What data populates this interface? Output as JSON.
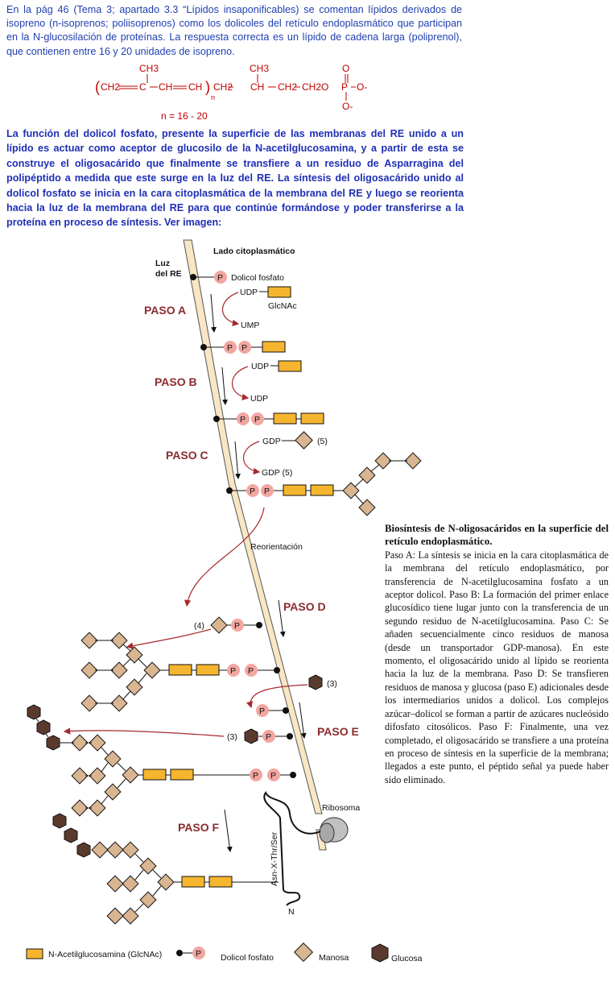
{
  "intro_text": "En la pág 46 (Tema 3; apartado 3.3 “Lípidos insaponificables) se comentan lípidos derivados de isopreno (n-isoprenos; poliisoprenos) como los dolicoles del retículo endoplasmático que participan en la N-glucosilación de proteínas. La respuesta correcta es un lípido de cadena larga (poliprenol), que contienen entre 16 y 20 unidades de isopreno.",
  "formula": {
    "ch3_a": "CH3",
    "ch3_b": "CH3",
    "o_top": "O",
    "paren_left": "(",
    "ch2_a": "CH2",
    "c": "C",
    "ch_a": "CH",
    "ch_b": "CH",
    "paren_right": ")",
    "n": "n",
    "ch2_b": "CH2",
    "ch_c": "CH",
    "ch2_c": "CH2",
    "ch2o": "CH2O",
    "p": "P",
    "o_minus_right": "O-",
    "o_minus_bottom": "O-",
    "n_range": "n = 16 - 20",
    "color": "#c00000"
  },
  "function_text": "La función del dolicol fosfato, presente la superficie de las membranas del RE unido a   un lípido es actuar como aceptor de glucosilo de la N-acetilglucosamina, y a partir de esta se construye el oligosacárido que finalmente se transfiere a un residuo de Asparragina del polipéptido a medida que este surge en la luz del RE. La síntesis del oligosacárido unido al dolicol fosfato se inicia en la cara citoplasmática de la membrana del RE y luego se reorienta hacia la luz de la membrana del RE para que continúe formándose y poder transferirse a la proteína en proceso de síntesis. Ver imagen:",
  "diagram": {
    "lado_citoplasmatico": "Lado citoplasmático",
    "luz_line1": "Luz",
    "luz_line2": "del RE",
    "dolicol_fosfato": "Dolicol fosfato",
    "p_symbol": "P",
    "udp": "UDP",
    "ump": "UMP",
    "glcnac": "GlcNAc",
    "gdp": "GDP",
    "gdp5": "GDP (5)",
    "five": "(5)",
    "four": "(4)",
    "three": "(3)",
    "reorientacion": "Reorientación",
    "ribosoma": "Ribosoma",
    "peptide": "Asn-X-Thr/Ser",
    "n_term": "N",
    "paso_a": "PASO A",
    "paso_b": "PASO B",
    "paso_c": "PASO C",
    "paso_d": "PASO D",
    "paso_e": "PASO E",
    "paso_f": "PASO F",
    "colors": {
      "membrane": "#f8e6c4",
      "glcnac": "#f6b52e",
      "mannose": "#d9b591",
      "glucose": "#5b3a2e",
      "phosphate": "#f2a6a0",
      "paso": "#8b2b2e",
      "arrow": "#a8282d"
    }
  },
  "legend": {
    "glcnac": "N-Acetilglucosamina (GlcNAc)",
    "dolicol": "Dolicol fosfato",
    "manosa": "Manosa",
    "glucosa": "Glucosa"
  },
  "caption": {
    "title": "Biosíntesis de N-oligosacáridos en la superficie del retículo endoplasmático.",
    "body": "Paso A: La síntesis se inicia en la cara citoplasmática de la membrana del retículo endoplasmático, por transferencia de N-acetilglucosamina fosfato a un aceptor dolicol. Paso B: La formación del primer enlace glucosídico tiene lugar junto con la transferencia de un segundo residuo de N-acetilglucosamina. Paso C: Se añaden secuencialmente cinco residuos de manosa (desde un transportador GDP-manosa). En este momento, el oligosacárido unido al lípido se reorienta hacia la luz de la membrana. Paso D: Se transfieren residuos de manosa y glucosa (paso E) adicionales desde los intermediarios unidos a dolicol. Los complejos azúcar–dolicol se forman a partir de azúcares nucleósido difosfato citosólicos. Paso F: Finalmente, una vez completado, el oligosacárido se transfiere a una proteína en proceso de síntesis en la superficie de la membrana; llegados a este punto, el péptido señal ya puede haber sido eliminado."
  }
}
